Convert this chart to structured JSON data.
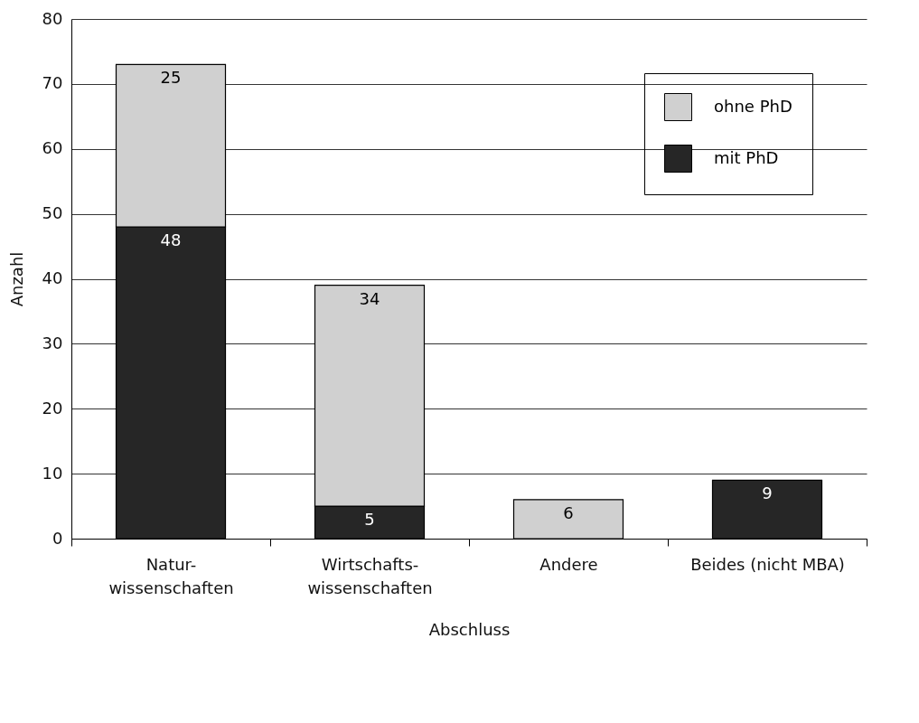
{
  "chart_data": {
    "type": "bar",
    "xlabel": "Abschluss",
    "ylabel": "Anzahl",
    "categories": [
      "Natur-\nwissenschaften",
      "Wirtschafts-\nwissenschaften",
      "Andere",
      "Beides (nicht MBA)"
    ],
    "series": [
      {
        "name": "mit PhD",
        "color": "#262626",
        "values": [
          48,
          5,
          null,
          9
        ]
      },
      {
        "name": "ohne PhD",
        "color": "#d0d0d0",
        "values": [
          25,
          34,
          6,
          null
        ]
      }
    ],
    "stacked": true,
    "ylim": [
      0,
      80
    ],
    "yticks": [
      0,
      10,
      20,
      30,
      40,
      50,
      60,
      70,
      80
    ],
    "grid": "y",
    "legend": "top right",
    "data_labels": true
  }
}
